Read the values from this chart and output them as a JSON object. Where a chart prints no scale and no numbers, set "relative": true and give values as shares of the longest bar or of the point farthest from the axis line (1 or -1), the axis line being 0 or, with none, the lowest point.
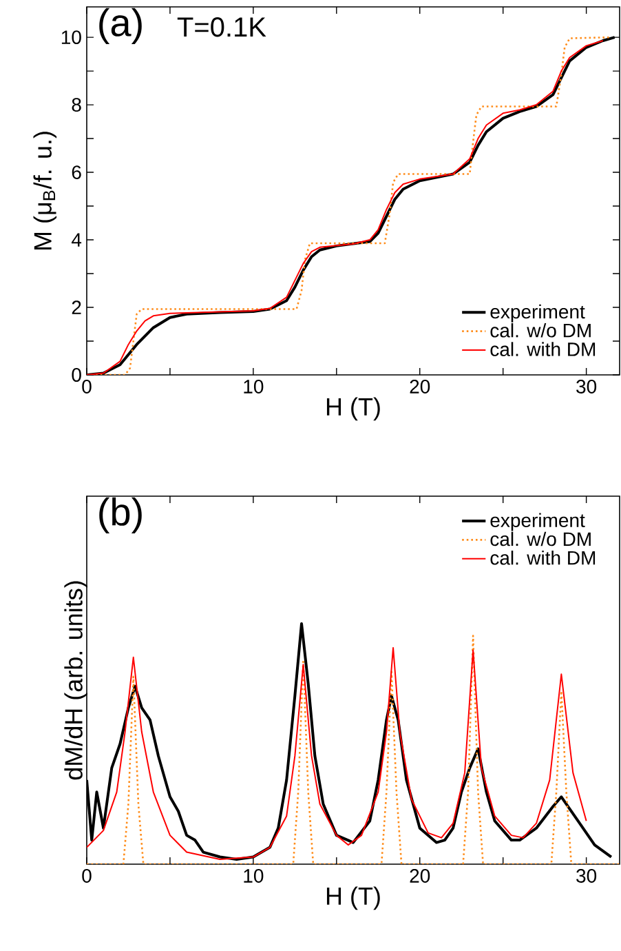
{
  "chart_data": [
    {
      "type": "line",
      "xlabel": "H  (T)",
      "ylabel": "M  (μ$_{B}$/f. u.)",
      "annotations": [
        "(a)",
        "T=0.1K"
      ],
      "xlim": [
        0,
        32
      ],
      "ylim": [
        0,
        10.9
      ],
      "xticks": [
        0,
        {
          "value": 5,
          "label": null
        },
        10,
        {
          "value": 15,
          "label": null
        },
        20,
        {
          "value": 25,
          "label": null
        },
        30
      ],
      "yticks": [
        0,
        {
          "value": 1,
          "label": null
        },
        2,
        {
          "value": 3,
          "label": null
        },
        4,
        {
          "value": 5,
          "label": null
        },
        6,
        {
          "value": 7,
          "label": null
        },
        8,
        {
          "value": 9,
          "label": null
        },
        10
      ],
      "legend": "bottom right",
      "marker": "none",
      "grid": false,
      "series": [
        {
          "name": "experiment",
          "color": "#000000",
          "line_style": "solid",
          "x": [
            0,
            1,
            2,
            3,
            4,
            5,
            6,
            8,
            10,
            11,
            12,
            12.5,
            13,
            13.5,
            14,
            15,
            17,
            17.5,
            18,
            18.5,
            19,
            20,
            22,
            23,
            23.5,
            24,
            25,
            26,
            27,
            28,
            28.5,
            29,
            30,
            31,
            31.7
          ],
          "values": [
            0,
            0.05,
            0.3,
            0.9,
            1.4,
            1.7,
            1.8,
            1.85,
            1.88,
            1.95,
            2.2,
            2.6,
            3.1,
            3.5,
            3.7,
            3.82,
            3.95,
            4.2,
            4.7,
            5.2,
            5.5,
            5.75,
            5.95,
            6.3,
            6.8,
            7.2,
            7.6,
            7.8,
            7.95,
            8.3,
            8.8,
            9.3,
            9.7,
            9.9,
            10.0
          ]
        },
        {
          "name": "cal. w/o DM",
          "color": "#ff8c1a",
          "line_style": "dotted",
          "x": [
            0,
            2.3,
            2.6,
            2.8,
            3.0,
            3.3,
            12.6,
            12.9,
            13.1,
            13.4,
            17.9,
            18.2,
            18.4,
            18.7,
            23,
            23.2,
            23.4,
            23.7,
            28.2,
            28.5,
            28.7,
            29,
            31.5
          ],
          "values": [
            0,
            0,
            0.2,
            1,
            1.8,
            1.95,
            1.95,
            2.5,
            3.4,
            3.9,
            3.9,
            4.8,
            5.7,
            5.95,
            5.95,
            6.9,
            7.7,
            7.95,
            7.95,
            8.9,
            9.7,
            9.97,
            10
          ]
        },
        {
          "name": "cal. with DM",
          "color": "#ff0000",
          "line_style": "solid",
          "x": [
            0,
            1,
            2,
            2.5,
            3,
            3.5,
            4,
            5,
            8,
            10,
            11,
            12,
            12.5,
            13,
            13.5,
            14,
            16,
            17,
            17.5,
            18,
            18.5,
            19,
            20,
            22,
            23,
            23.5,
            24,
            25,
            26,
            27,
            28,
            28.5,
            29,
            30,
            31
          ],
          "values": [
            0,
            0.05,
            0.4,
            0.9,
            1.3,
            1.6,
            1.75,
            1.82,
            1.87,
            1.9,
            1.97,
            2.3,
            2.8,
            3.3,
            3.65,
            3.78,
            3.88,
            4.0,
            4.3,
            4.9,
            5.4,
            5.65,
            5.8,
            5.95,
            6.4,
            7.0,
            7.4,
            7.75,
            7.85,
            8.0,
            8.4,
            9.0,
            9.4,
            9.75,
            9.9
          ]
        }
      ]
    },
    {
      "type": "line",
      "xlabel": "H  (T)",
      "ylabel": "dM/dH  (arb. units)",
      "annotations": [
        "(b)"
      ],
      "relative": true,
      "xlim": [
        0,
        32
      ],
      "xticks": [
        0,
        {
          "value": 5,
          "label": null
        },
        10,
        {
          "value": 15,
          "label": null
        },
        20,
        {
          "value": 25,
          "label": null
        },
        30
      ],
      "legend": "top right",
      "marker": "none",
      "grid": false,
      "series": [
        {
          "name": "experiment",
          "color": "#000000",
          "line_style": "solid",
          "x": [
            0,
            0.3,
            0.6,
            1,
            1.5,
            2,
            2.5,
            2.9,
            3.3,
            3.8,
            4.3,
            5,
            5.5,
            6,
            6.5,
            7,
            8,
            9,
            10,
            11,
            11.5,
            12,
            12.5,
            12.9,
            13.3,
            13.7,
            14.2,
            15,
            16,
            17,
            17.5,
            18,
            18.3,
            18.7,
            19.2,
            20,
            21,
            21.5,
            22,
            22.5,
            23,
            23.5,
            24,
            24.5,
            25.5,
            26,
            27,
            28,
            28.5,
            29.5,
            30.5,
            31.5
          ],
          "values": [
            0.35,
            0.1,
            0.3,
            0.15,
            0.4,
            0.5,
            0.65,
            0.74,
            0.65,
            0.6,
            0.45,
            0.28,
            0.22,
            0.12,
            0.1,
            0.05,
            0.03,
            0.02,
            0.03,
            0.07,
            0.15,
            0.35,
            0.7,
            1.0,
            0.75,
            0.45,
            0.25,
            0.12,
            0.09,
            0.18,
            0.35,
            0.6,
            0.7,
            0.6,
            0.35,
            0.15,
            0.09,
            0.1,
            0.15,
            0.3,
            0.4,
            0.48,
            0.3,
            0.18,
            0.1,
            0.1,
            0.15,
            0.24,
            0.28,
            0.18,
            0.08,
            0.03
          ]
        },
        {
          "name": "cal. w/o DM",
          "color": "#ff8c1a",
          "line_style": "dotted",
          "x": [
            0,
            2.2,
            2.5,
            2.8,
            3.1,
            3.4,
            12.4,
            12.7,
            13,
            13.3,
            13.6,
            17.7,
            18,
            18.3,
            18.6,
            18.9,
            22.6,
            22.9,
            23.2,
            23.5,
            23.8,
            27.9,
            28.2,
            28.5,
            28.8,
            29.1,
            32
          ],
          "values": [
            0,
            0,
            0.25,
            0.78,
            0.25,
            0,
            0,
            0.3,
            0.85,
            0.3,
            0,
            0,
            0.3,
            0.8,
            0.3,
            0,
            0,
            0.3,
            0.95,
            0.3,
            0,
            0,
            0.3,
            0.72,
            0.3,
            0,
            0
          ]
        },
        {
          "name": "cal. with DM",
          "color": "#ff0000",
          "line_style": "solid",
          "x": [
            0,
            1,
            1.8,
            2.3,
            2.8,
            3.3,
            4,
            5,
            6,
            8,
            10,
            11,
            12,
            12.5,
            13,
            13.5,
            14,
            15,
            15.7,
            16.5,
            17.5,
            18,
            18.4,
            18.8,
            19.5,
            20.5,
            21.3,
            22,
            22.7,
            23.2,
            23.7,
            24.5,
            25.5,
            26.2,
            27,
            27.8,
            28.5,
            29.2,
            30
          ],
          "values": [
            0.07,
            0.14,
            0.3,
            0.55,
            0.86,
            0.55,
            0.3,
            0.12,
            0.05,
            0.02,
            0.03,
            0.07,
            0.2,
            0.45,
            0.83,
            0.45,
            0.25,
            0.12,
            0.08,
            0.12,
            0.3,
            0.55,
            0.9,
            0.55,
            0.27,
            0.13,
            0.11,
            0.17,
            0.38,
            0.89,
            0.4,
            0.2,
            0.12,
            0.11,
            0.17,
            0.35,
            0.79,
            0.38,
            0.18
          ]
        }
      ]
    }
  ]
}
